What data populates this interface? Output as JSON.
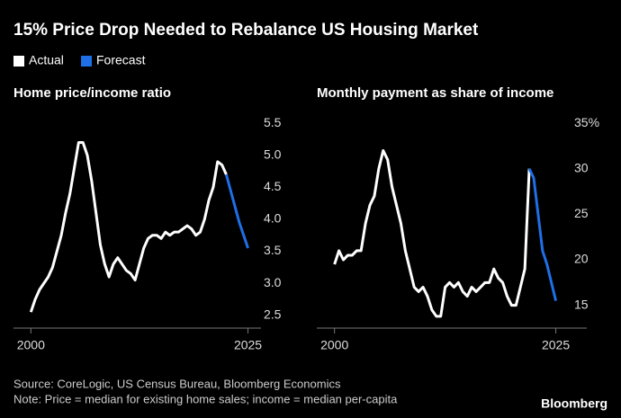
{
  "title": "15% Price Drop Needed to Rebalance US Housing Market",
  "source": "Source: CoreLogic, US Census Bureau, Bloomberg Economics",
  "note": "Note: Price = median for existing home sales; income = median per-capita",
  "logo": "Bloomberg",
  "chart_data": [
    {
      "type": "line",
      "title": "Home price/income ratio",
      "x": [
        2000,
        2000.5,
        2001,
        2001.5,
        2002,
        2002.5,
        2003,
        2003.5,
        2004,
        2004.5,
        2005,
        2005.5,
        2006,
        2006.5,
        2007,
        2007.5,
        2008,
        2008.5,
        2009,
        2009.5,
        2010,
        2010.5,
        2011,
        2011.5,
        2012,
        2012.5,
        2013,
        2013.5,
        2014,
        2014.5,
        2015,
        2015.5,
        2016,
        2016.5,
        2017,
        2017.5,
        2018,
        2018.5,
        2019,
        2019.5,
        2020,
        2020.5,
        2021,
        2021.5,
        2022,
        2022.5,
        2023,
        2023.5,
        2024,
        2024.5,
        2025
      ],
      "series": [
        {
          "name": "Actual",
          "color": "#ffffff",
          "values": [
            2.55,
            2.75,
            2.9,
            3.0,
            3.1,
            3.25,
            3.5,
            3.75,
            4.1,
            4.4,
            4.8,
            5.2,
            5.2,
            5.0,
            4.6,
            4.1,
            3.6,
            3.3,
            3.1,
            3.3,
            3.4,
            3.3,
            3.2,
            3.15,
            3.05,
            3.3,
            3.55,
            3.7,
            3.75,
            3.75,
            3.7,
            3.8,
            3.75,
            3.8,
            3.8,
            3.85,
            3.9,
            3.85,
            3.75,
            3.8,
            4.0,
            4.3,
            4.5,
            4.9,
            4.85,
            4.7,
            null,
            null,
            null,
            null,
            null
          ]
        },
        {
          "name": "Forecast",
          "color": "#1f6fe6",
          "values": [
            null,
            null,
            null,
            null,
            null,
            null,
            null,
            null,
            null,
            null,
            null,
            null,
            null,
            null,
            null,
            null,
            null,
            null,
            null,
            null,
            null,
            null,
            null,
            null,
            null,
            null,
            null,
            null,
            null,
            null,
            null,
            null,
            null,
            null,
            null,
            null,
            null,
            null,
            null,
            null,
            null,
            null,
            null,
            null,
            null,
            4.7,
            4.45,
            4.2,
            3.95,
            3.75,
            3.55
          ]
        }
      ],
      "xlim": [
        1998,
        2026.5
      ],
      "xticks": [
        2000,
        2025
      ],
      "ylim": [
        2.3,
        5.6
      ],
      "yticks": [
        2.5,
        {
          "value": 3,
          "label": "3.0"
        },
        3.5,
        {
          "value": 4,
          "label": "4.0"
        },
        4.5,
        {
          "value": 5,
          "label": "5.0"
        },
        5.5
      ]
    },
    {
      "type": "line",
      "title": "Monthly payment as share of income",
      "x": [
        2000,
        2000.5,
        2001,
        2001.5,
        2002,
        2002.5,
        2003,
        2003.5,
        2004,
        2004.5,
        2005,
        2005.5,
        2006,
        2006.5,
        2007,
        2007.5,
        2008,
        2008.5,
        2009,
        2009.5,
        2010,
        2010.5,
        2011,
        2011.5,
        2012,
        2012.5,
        2013,
        2013.5,
        2014,
        2014.5,
        2015,
        2015.5,
        2016,
        2016.5,
        2017,
        2017.5,
        2018,
        2018.5,
        2019,
        2019.5,
        2020,
        2020.5,
        2021,
        2021.5,
        2022,
        2022.5,
        2023,
        2023.5,
        2024,
        2024.5,
        2025
      ],
      "series": [
        {
          "color": "#ffffff",
          "values": [
            19.5,
            21,
            20,
            20.5,
            20.5,
            21,
            21,
            24,
            26,
            27,
            30,
            32,
            31,
            28,
            26,
            24,
            21,
            19,
            17,
            16.5,
            17,
            16,
            14.5,
            13.8,
            13.8,
            17,
            17.5,
            17,
            17.5,
            16.5,
            16,
            17,
            16.5,
            17,
            17.5,
            17.5,
            19,
            18,
            17.5,
            16,
            15,
            15,
            17,
            19,
            30,
            null,
            null,
            null,
            null,
            null,
            null
          ]
        },
        {
          "color": "#1f6fe6",
          "values": [
            null,
            null,
            null,
            null,
            null,
            null,
            null,
            null,
            null,
            null,
            null,
            null,
            null,
            null,
            null,
            null,
            null,
            null,
            null,
            null,
            null,
            null,
            null,
            null,
            null,
            null,
            null,
            null,
            null,
            null,
            null,
            null,
            null,
            null,
            null,
            null,
            null,
            null,
            null,
            null,
            null,
            null,
            null,
            null,
            30,
            29,
            25,
            21,
            19.5,
            17.5,
            15.5
          ]
        }
      ],
      "xlim": [
        1998,
        2028.5
      ],
      "xticks": [
        2000,
        2025
      ],
      "ylim": [
        12.5,
        35.7
      ],
      "yticks": [
        15,
        20,
        25,
        30,
        {
          "value": 35,
          "label": "35%"
        }
      ]
    }
  ]
}
